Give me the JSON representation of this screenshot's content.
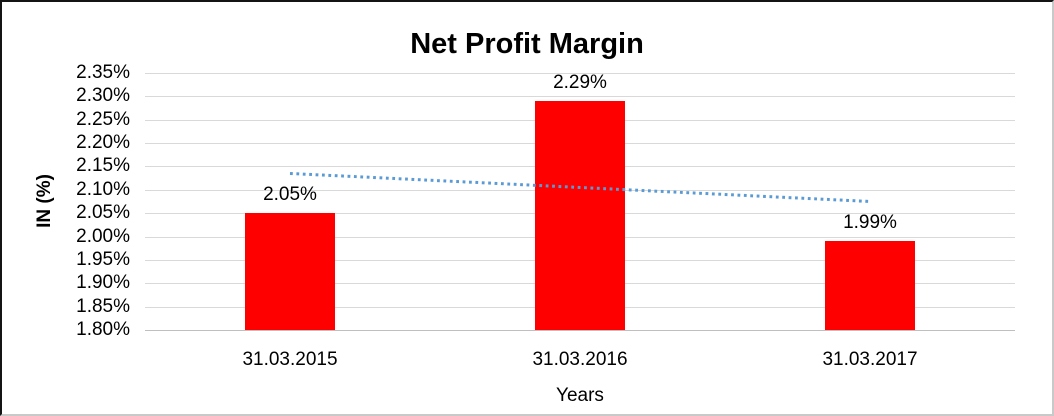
{
  "chart_data": {
    "type": "bar",
    "title": "Net Profit Margin",
    "xlabel": "Years",
    "ylabel": "IN (%)",
    "categories": [
      "31.03.2015",
      "31.03.2016",
      "31.03.2017"
    ],
    "values": [
      2.05,
      2.29,
      1.99
    ],
    "data_labels": [
      "2.05%",
      "2.29%",
      "1.99%"
    ],
    "y_ticks": [
      {
        "label": "2.35%",
        "value": 2.35
      },
      {
        "label": "2.30%",
        "value": 2.3
      },
      {
        "label": "2.25%",
        "value": 2.25
      },
      {
        "label": "2.20%",
        "value": 2.2
      },
      {
        "label": "2.15%",
        "value": 2.15
      },
      {
        "label": "2.10%",
        "value": 2.1
      },
      {
        "label": "2.05%",
        "value": 2.05
      },
      {
        "label": "2.00%",
        "value": 2.0
      },
      {
        "label": "1.95%",
        "value": 1.95
      },
      {
        "label": "1.90%",
        "value": 1.9
      },
      {
        "label": "1.85%",
        "value": 1.85
      },
      {
        "label": "1.80%",
        "value": 1.8
      }
    ],
    "ylim": [
      1.8,
      2.35
    ],
    "grid": true,
    "legend": "none",
    "trendline": {
      "type": "linear",
      "style": "dotted",
      "start_value": 2.135,
      "end_value": 2.075
    },
    "colors": {
      "bar": "#FF0000",
      "trendline": "#5B9BD5",
      "gridline": "#D9D9D9",
      "axis_line": "#BFBFBF",
      "text": "#000000"
    }
  }
}
